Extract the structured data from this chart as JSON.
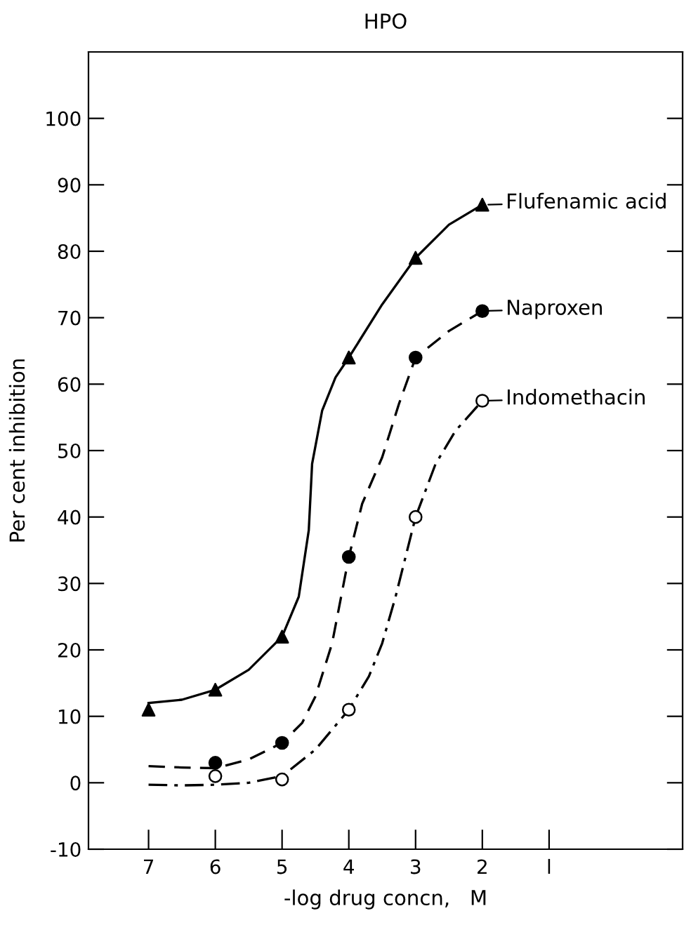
{
  "chart_data": {
    "type": "line",
    "title": "HPO",
    "xlabel": "-log drug concn,   M",
    "ylabel": "Per cent inhibition",
    "xlim": [
      7.9,
      -1
    ],
    "xticks": [
      7,
      6,
      5,
      4,
      3,
      2,
      {
        "value": 1,
        "label": "l"
      }
    ],
    "ylim": [
      -10,
      110
    ],
    "yticks": [
      -10,
      0,
      10,
      20,
      30,
      40,
      50,
      60,
      70,
      80,
      90,
      100
    ],
    "grid": false,
    "legend": "right",
    "series": [
      {
        "color": "#000000",
        "line_style": "solid",
        "marker": "none",
        "x": [
          7,
          6.5,
          6,
          5.5,
          5,
          4.75,
          4.6,
          4.55,
          4.4,
          4.2,
          4,
          3.5,
          3,
          2.5,
          2
        ],
        "values": [
          12,
          12.5,
          14,
          17,
          22,
          28,
          38,
          48,
          56,
          61,
          64,
          72,
          79,
          84,
          87
        ]
      },
      {
        "color": "#000000",
        "line_style": "dashed",
        "marker": "none",
        "x": [
          7,
          6.5,
          6,
          5.5,
          5,
          4.7,
          4.5,
          4.25,
          4,
          3.8,
          3.5,
          3.25,
          3,
          2.5,
          2
        ],
        "values": [
          2.5,
          2.3,
          2.2,
          3.5,
          6,
          9,
          13,
          21,
          34,
          42,
          49,
          57,
          64,
          68,
          71
        ]
      },
      {
        "color": "#000000",
        "line_style": "dashdot",
        "marker": "none",
        "x": [
          7,
          6.5,
          6,
          5.5,
          5,
          4.5,
          4,
          3.7,
          3.5,
          3.3,
          3,
          2.7,
          2.4,
          2
        ],
        "values": [
          -0.3,
          -0.4,
          -0.3,
          0,
          1,
          5,
          11,
          16,
          21,
          28,
          40,
          48,
          53,
          57.5
        ]
      },
      {
        "type": "scatter",
        "name": "Flufenamic acid",
        "color": "#000000",
        "marker": "triangle",
        "x": [
          7,
          6,
          5,
          4,
          3,
          2
        ],
        "values": [
          11,
          14,
          22,
          64,
          79,
          87
        ]
      },
      {
        "type": "scatter",
        "name": "Naproxen",
        "color": "#000000",
        "marker": "circle",
        "x": [
          6,
          5,
          4,
          3,
          2
        ],
        "values": [
          3,
          6,
          34,
          64,
          71
        ]
      },
      {
        "type": "scatter",
        "name": "Indomethacin",
        "color": "#ffffff",
        "marker": "circle",
        "x": [
          6,
          5,
          4,
          3,
          2
        ],
        "values": [
          1,
          0.5,
          11,
          40,
          57.5
        ]
      }
    ]
  }
}
